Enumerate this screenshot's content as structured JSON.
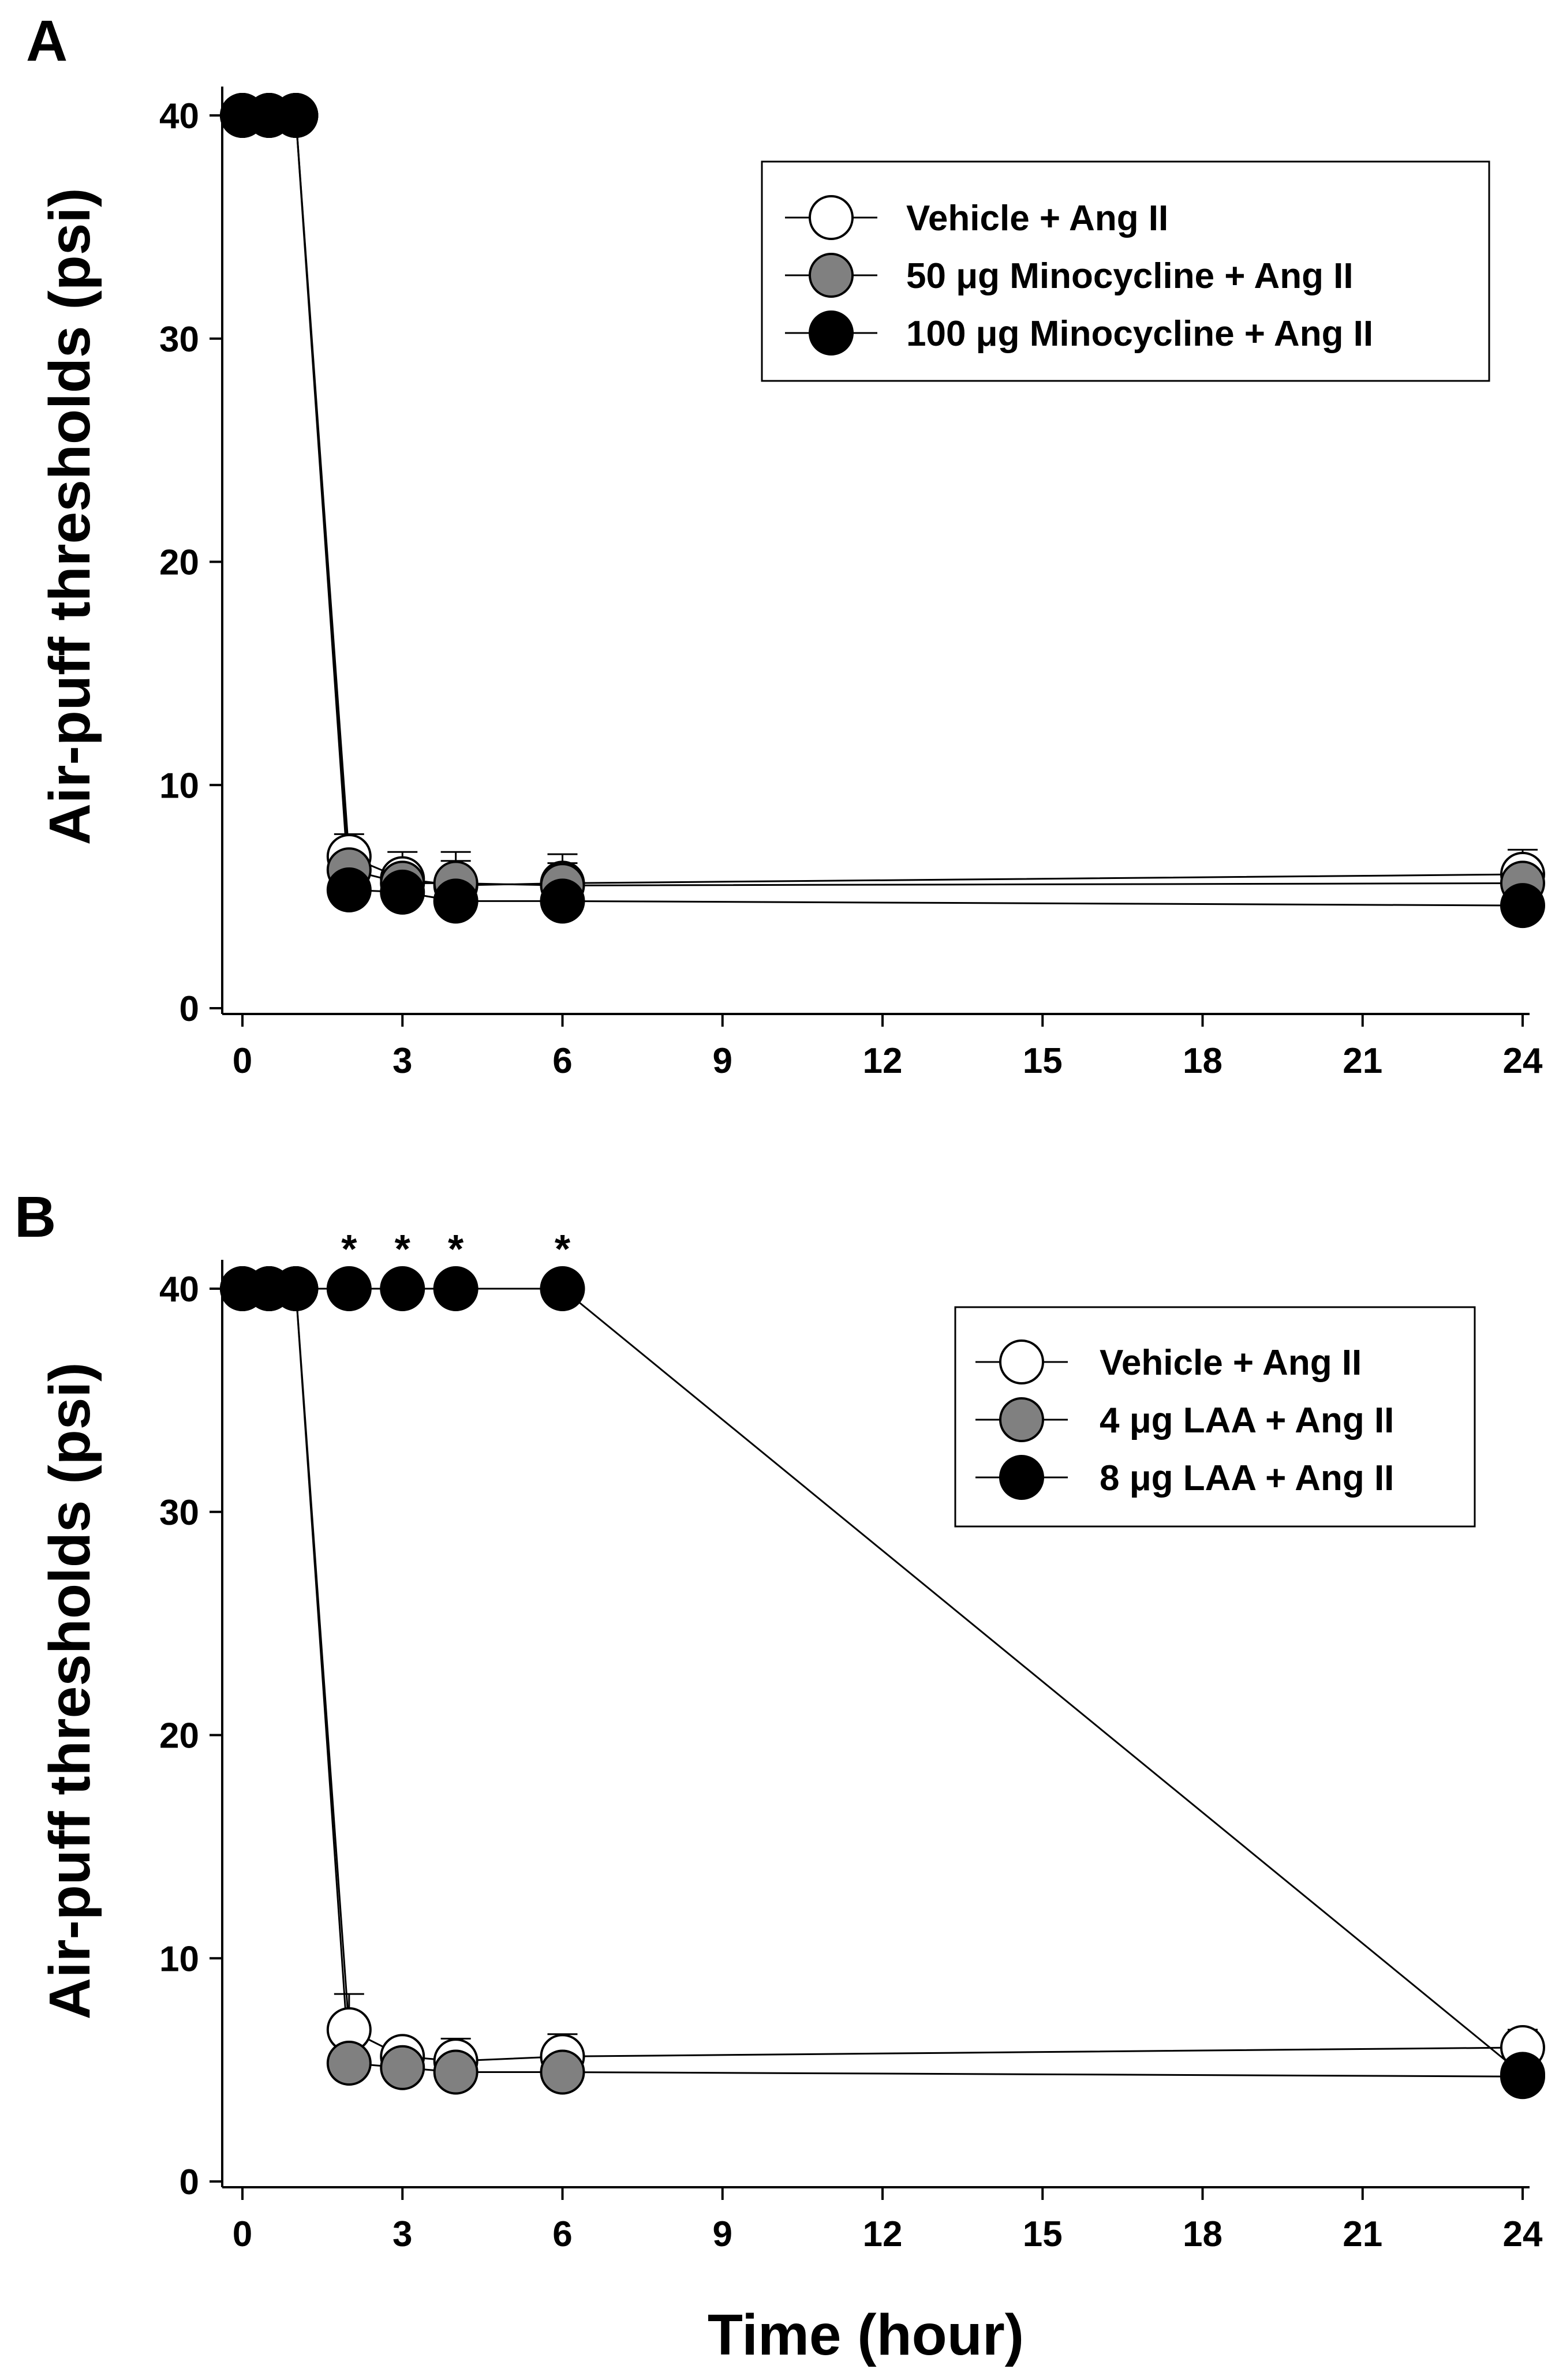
{
  "chart_data": [
    {
      "panel": "A",
      "type": "line",
      "title": "",
      "xlabel": "",
      "ylabel": "Air-puff thresholds (psi)",
      "xlim": [
        0,
        24
      ],
      "ylim": [
        0,
        40
      ],
      "xticks": [
        "0",
        "3",
        "6",
        "9",
        "12",
        "15",
        "18",
        "21",
        "24"
      ],
      "yticks": [
        "0",
        "10",
        "20",
        "30",
        "40"
      ],
      "legend_position": "top-right",
      "series": [
        {
          "name": "Vehicle + Ang II",
          "color": "#ffffff",
          "x": [
            0,
            0.5,
            1,
            2,
            3,
            4,
            6,
            24
          ],
          "values": [
            40,
            40,
            40,
            6.8,
            5.8,
            5.5,
            5.6,
            6.0
          ],
          "errors": [
            0,
            0,
            0,
            1.0,
            1.2,
            1.5,
            1.3,
            1.1
          ]
        },
        {
          "name": "50 μg Minocycline + Ang II",
          "color": "#808080",
          "x": [
            0,
            0.5,
            1,
            2,
            3,
            4,
            6,
            24
          ],
          "values": [
            40,
            40,
            40,
            6.2,
            5.6,
            5.6,
            5.5,
            5.6
          ],
          "errors": [
            0,
            0,
            0,
            0.8,
            0.9,
            1.0,
            1.0,
            0.9
          ]
        },
        {
          "name": "100 μg Minocycline + Ang II",
          "color": "#000000",
          "x": [
            0,
            0.5,
            1,
            2,
            3,
            4,
            6,
            24
          ],
          "values": [
            40,
            40,
            40,
            5.3,
            5.2,
            4.8,
            4.8,
            4.6
          ],
          "errors": [
            0,
            0,
            0,
            0.5,
            0.5,
            0.4,
            0.4,
            0.4
          ]
        }
      ],
      "annotations": []
    },
    {
      "panel": "B",
      "type": "line",
      "title": "",
      "xlabel": "Time (hour)",
      "ylabel": "Air-puff thresholds (psi)",
      "xlim": [
        0,
        24
      ],
      "ylim": [
        0,
        40
      ],
      "xticks": [
        "0",
        "3",
        "6",
        "9",
        "12",
        "15",
        "18",
        "21",
        "24"
      ],
      "yticks": [
        "0",
        "10",
        "20",
        "30",
        "40"
      ],
      "legend_position": "middle-right",
      "series": [
        {
          "name": "Vehicle + Ang II",
          "color": "#ffffff",
          "x": [
            0,
            0.5,
            1,
            2,
            3,
            4,
            6,
            24
          ],
          "values": [
            40,
            40,
            40,
            6.8,
            5.6,
            5.4,
            5.6,
            6.0
          ],
          "errors": [
            0,
            0,
            0,
            1.6,
            0.7,
            1.0,
            1.0,
            0.8
          ]
        },
        {
          "name": "4 μg LAA + Ang II",
          "color": "#808080",
          "x": [
            0,
            0.5,
            1,
            2,
            3,
            4,
            6,
            24
          ],
          "values": [
            40,
            40,
            40,
            5.3,
            5.1,
            4.9,
            4.9,
            4.7
          ],
          "errors": [
            0,
            0,
            0,
            0.5,
            0.5,
            0.4,
            0.4,
            0.5
          ]
        },
        {
          "name": "8 μg LAA + Ang II",
          "color": "#000000",
          "x": [
            0,
            0.5,
            1,
            2,
            3,
            4,
            6,
            24
          ],
          "values": [
            40,
            40,
            40,
            40,
            40,
            40,
            40,
            4.8
          ],
          "errors": [
            0,
            0,
            0,
            0,
            0,
            0,
            0,
            0.6
          ]
        }
      ],
      "annotations": [
        {
          "x": 2,
          "y": 40,
          "text": "*"
        },
        {
          "x": 3,
          "y": 40,
          "text": "*"
        },
        {
          "x": 4,
          "y": 40,
          "text": "*"
        },
        {
          "x": 6,
          "y": 40,
          "text": "*"
        }
      ]
    }
  ]
}
